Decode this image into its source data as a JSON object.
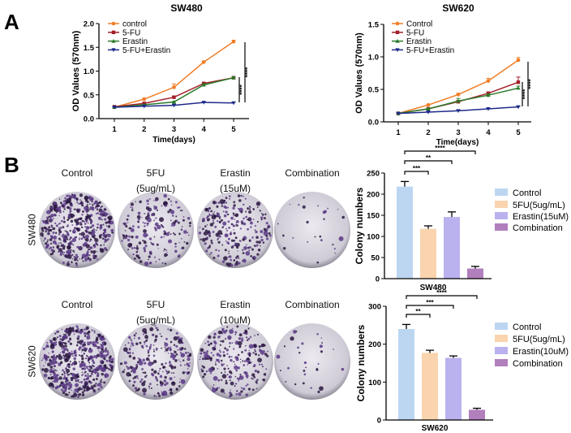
{
  "panels": {
    "a": "A",
    "b": "B"
  },
  "plates": {
    "row_sw480": {
      "cell_line": "SW480",
      "labels": [
        [
          "Control",
          ""
        ],
        [
          "5FU",
          "(5ug/mL)"
        ],
        [
          "Erastin",
          "(15uM)"
        ],
        [
          "Combination",
          ""
        ]
      ]
    },
    "row_sw620": {
      "cell_line": "SW620",
      "labels": [
        [
          "Control",
          ""
        ],
        [
          "5FU",
          "(5ug/mL)"
        ],
        [
          "Erastin",
          "(10uM)"
        ],
        [
          "Combination",
          ""
        ]
      ]
    }
  },
  "chart_data": [
    {
      "type": "line",
      "title": "SW480",
      "xlabel": "Time(days)",
      "ylabel": "OD Values (570nm)",
      "x": [
        1,
        2,
        3,
        4,
        5
      ],
      "ylim": [
        0,
        2.0
      ],
      "yticks": [
        "0.0",
        "0.5",
        "1.0",
        "1.5",
        "2.0"
      ],
      "legend": "top-left",
      "significance": [
        "****",
        "****"
      ],
      "series": [
        {
          "name": "control",
          "color": "#f07d26",
          "marker": "circle",
          "values": [
            0.24,
            0.41,
            0.66,
            1.19,
            1.62
          ],
          "err": [
            0.01,
            0.02,
            0.07,
            0.02,
            0.03
          ]
        },
        {
          "name": "5-FU",
          "color": "#a3212a",
          "marker": "square",
          "values": [
            0.25,
            0.32,
            0.45,
            0.74,
            0.86
          ],
          "err": [
            0.01,
            0.01,
            0.02,
            0.02,
            0.02
          ]
        },
        {
          "name": "Erastin",
          "color": "#2a7a2a",
          "marker": "triangle-up",
          "values": [
            0.24,
            0.29,
            0.35,
            0.71,
            0.86
          ],
          "err": [
            0.01,
            0.01,
            0.01,
            0.02,
            0.02
          ]
        },
        {
          "name": "5-FU+Erastin",
          "color": "#1f2a8a",
          "marker": "triangle-down",
          "values": [
            0.24,
            0.26,
            0.28,
            0.34,
            0.33
          ],
          "err": [
            0.01,
            0.01,
            0.01,
            0.01,
            0.01
          ]
        }
      ]
    },
    {
      "type": "line",
      "title": "SW620",
      "xlabel": "Time(days)",
      "ylabel": "OD Values (570nm)",
      "x": [
        1,
        2,
        3,
        4,
        5
      ],
      "ylim": [
        0,
        1.5
      ],
      "yticks": [
        "0.0",
        "0.5",
        "1.0",
        "1.5"
      ],
      "legend": "top-left",
      "significance": [
        "****",
        "****"
      ],
      "series": [
        {
          "name": "Control",
          "color": "#f07d26",
          "marker": "circle",
          "values": [
            0.13,
            0.26,
            0.42,
            0.63,
            0.95
          ],
          "err": [
            0.01,
            0.01,
            0.02,
            0.04,
            0.04
          ]
        },
        {
          "name": "5-FU",
          "color": "#a3212a",
          "marker": "square",
          "values": [
            0.13,
            0.2,
            0.31,
            0.44,
            0.61
          ],
          "err": [
            0.01,
            0.01,
            0.02,
            0.02,
            0.08
          ]
        },
        {
          "name": "Erastin",
          "color": "#2a7a2a",
          "marker": "triangle-up",
          "values": [
            0.13,
            0.2,
            0.32,
            0.41,
            0.52
          ],
          "err": [
            0.01,
            0.01,
            0.04,
            0.02,
            0.03
          ]
        },
        {
          "name": "5-FU+Erastin",
          "color": "#1f2a8a",
          "marker": "triangle-down",
          "values": [
            0.13,
            0.15,
            0.17,
            0.2,
            0.23
          ],
          "err": [
            0.01,
            0.01,
            0.01,
            0.01,
            0.01
          ]
        }
      ]
    },
    {
      "type": "bar",
      "xlabel": "SW480",
      "ylabel": "Colony numbers",
      "ylim": [
        0,
        250
      ],
      "yticks": [
        "0",
        "50",
        "100",
        "150",
        "200",
        "250"
      ],
      "legend": "right",
      "categories": [
        "Control",
        "5FU(5ug/mL)",
        "Erastin(15uM)",
        "Combination"
      ],
      "values": [
        218,
        118,
        146,
        24
      ],
      "err": [
        12,
        7,
        12,
        5
      ],
      "colors": [
        "#bcd6f2",
        "#f9d4ae",
        "#b9b2ee",
        "#b27fbd"
      ],
      "significance": [
        {
          "from": 0,
          "to": 1,
          "label": "***"
        },
        {
          "from": 0,
          "to": 2,
          "label": "**"
        },
        {
          "from": 0,
          "to": 3,
          "label": "****"
        }
      ]
    },
    {
      "type": "bar",
      "xlabel": "SW620",
      "ylabel": "Colony numbers",
      "ylim": [
        0,
        300
      ],
      "yticks": [
        "0",
        "100",
        "200",
        "300"
      ],
      "legend": "right",
      "categories": [
        "Control",
        "5FU(5ug/mL)",
        "Erastin(10uM)",
        "Combination"
      ],
      "values": [
        240,
        177,
        164,
        27
      ],
      "err": [
        12,
        7,
        5,
        4
      ],
      "colors": [
        "#bcd6f2",
        "#f9d4ae",
        "#b9b2ee",
        "#b27fbd"
      ],
      "significance": [
        {
          "from": 0,
          "to": 1,
          "label": "**"
        },
        {
          "from": 0,
          "to": 2,
          "label": "***"
        },
        {
          "from": 0,
          "to": 3,
          "label": "****"
        }
      ]
    }
  ]
}
